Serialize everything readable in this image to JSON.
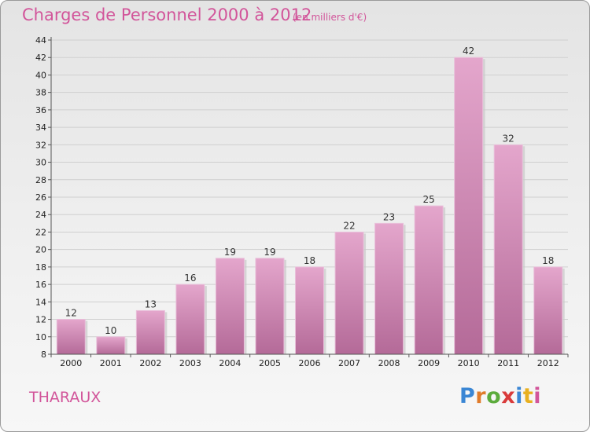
{
  "header": {
    "title": "Charges de Personnel 2000 à 2012",
    "subtitle": "(en milliers d'€)"
  },
  "footer": {
    "commune": "THARAUX",
    "logo_text": "Proxiti",
    "logo_colors": [
      "#3a86d4",
      "#e07b2a",
      "#5cab3c",
      "#d93b3b",
      "#3a86d4",
      "#e8b020",
      "#d2559a"
    ]
  },
  "colors": {
    "accent": "#d2559a",
    "bar_top": "#e4a6cc",
    "bar_bottom": "#b46a98"
  },
  "chart_data": {
    "type": "bar",
    "title": "Charges de Personnel 2000 à 2012",
    "subtitle": "(en milliers d'€)",
    "categories": [
      "2000",
      "2001",
      "2002",
      "2003",
      "2004",
      "2005",
      "2006",
      "2007",
      "2008",
      "2009",
      "2010",
      "2011",
      "2012"
    ],
    "values": [
      12,
      10,
      13,
      16,
      19,
      19,
      18,
      22,
      23,
      25,
      42,
      32,
      18
    ],
    "ylim": [
      8,
      44
    ],
    "yticks": [
      8,
      10,
      12,
      14,
      16,
      18,
      20,
      22,
      24,
      26,
      28,
      30,
      32,
      34,
      36,
      38,
      40,
      42,
      44
    ],
    "grid": true,
    "data_labels": true
  }
}
